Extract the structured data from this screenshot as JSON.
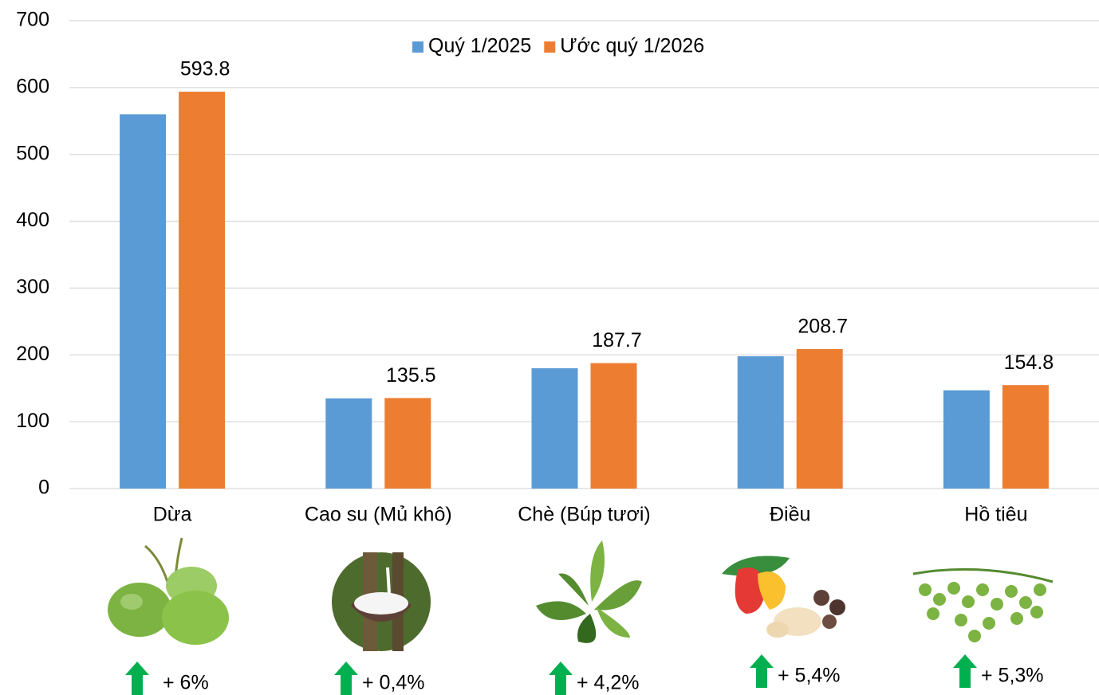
{
  "chart_data": {
    "type": "bar",
    "categories": [
      "Dừa",
      "Cao su (Mủ khô)",
      "Chè (Búp tươi)",
      "Điều",
      "Hồ tiêu"
    ],
    "series": [
      {
        "name": "Quý 1/2025",
        "color": "#5b9bd5",
        "values": [
          560,
          135,
          180,
          198,
          147
        ]
      },
      {
        "name": "Ước quý 1/2026",
        "color": "#ed7d31",
        "values": [
          593.8,
          135.5,
          187.7,
          208.7,
          154.8
        ],
        "data_labels": true
      }
    ],
    "ylim": [
      0,
      700
    ],
    "yticks": [
      0,
      100,
      200,
      300,
      400,
      500,
      600,
      700
    ],
    "grid": true,
    "legend": "top",
    "annotations": [
      "+ 6%",
      "+ 0,4%",
      "+ 4,2%",
      "+ 5,4%",
      "+ 5,3%"
    ],
    "annotation_color": "#00b050"
  }
}
